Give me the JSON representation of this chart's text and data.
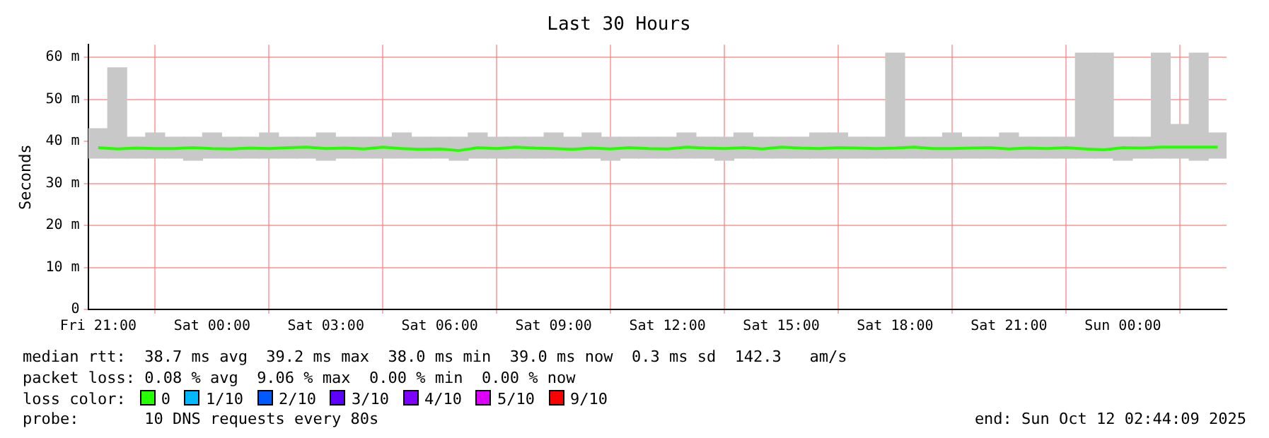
{
  "chart_data": {
    "type": "bar",
    "title": "Last 30 Hours",
    "ylabel": "Seconds",
    "xlim": [
      "2025-10-10T20:44",
      "2025-10-12T02:44"
    ],
    "xticks": [
      {
        "value": "2025-10-10T21:00",
        "label": "Fri 21:00"
      },
      {
        "value": "2025-10-11T00:00",
        "label": "Sat 00:00"
      },
      {
        "value": "2025-10-11T03:00",
        "label": "Sat 03:00"
      },
      {
        "value": "2025-10-11T06:00",
        "label": "Sat 06:00"
      },
      {
        "value": "2025-10-11T09:00",
        "label": "Sat 09:00"
      },
      {
        "value": "2025-10-11T12:00",
        "label": "Sat 12:00"
      },
      {
        "value": "2025-10-11T15:00",
        "label": "Sat 15:00"
      },
      {
        "value": "2025-10-11T18:00",
        "label": "Sat 18:00"
      },
      {
        "value": "2025-10-11T21:00",
        "label": "Sat 21:00"
      },
      {
        "value": "2025-10-12T00:00",
        "label": "Sun 00:00"
      }
    ],
    "ylim": [
      0,
      63
    ],
    "yticks": [
      {
        "value": 0,
        "label": "0"
      },
      {
        "value": 10,
        "label": "10 m"
      },
      {
        "value": 20,
        "label": "20 m"
      },
      {
        "value": 30,
        "label": "30 m"
      },
      {
        "value": 40,
        "label": "40 m"
      },
      {
        "value": 50,
        "label": "50 m"
      },
      {
        "value": 60,
        "label": "60 m"
      }
    ],
    "x": [
      "2025-10-10T21:00",
      "2025-10-10T21:30",
      "2025-10-10T22:00",
      "2025-10-10T22:30",
      "2025-10-10T23:00",
      "2025-10-10T23:30",
      "2025-10-11T00:00",
      "2025-10-11T00:30",
      "2025-10-11T01:00",
      "2025-10-11T01:30",
      "2025-10-11T02:00",
      "2025-10-11T02:30",
      "2025-10-11T03:00",
      "2025-10-11T03:30",
      "2025-10-11T04:00",
      "2025-10-11T04:30",
      "2025-10-11T05:00",
      "2025-10-11T05:30",
      "2025-10-11T06:00",
      "2025-10-11T06:30",
      "2025-10-11T07:00",
      "2025-10-11T07:30",
      "2025-10-11T08:00",
      "2025-10-11T08:30",
      "2025-10-11T09:00",
      "2025-10-11T09:30",
      "2025-10-11T10:00",
      "2025-10-11T10:30",
      "2025-10-11T11:00",
      "2025-10-11T11:30",
      "2025-10-11T12:00",
      "2025-10-11T12:30",
      "2025-10-11T13:00",
      "2025-10-11T13:30",
      "2025-10-11T14:00",
      "2025-10-11T14:30",
      "2025-10-11T15:00",
      "2025-10-11T15:30",
      "2025-10-11T16:00",
      "2025-10-11T16:30",
      "2025-10-11T17:00",
      "2025-10-11T17:30",
      "2025-10-11T18:00",
      "2025-10-11T18:30",
      "2025-10-11T19:00",
      "2025-10-11T19:30",
      "2025-10-11T20:00",
      "2025-10-11T20:30",
      "2025-10-11T21:00",
      "2025-10-11T21:30",
      "2025-10-11T22:00",
      "2025-10-11T22:30",
      "2025-10-11T23:00",
      "2025-10-11T23:30",
      "2025-10-12T00:00",
      "2025-10-12T00:30",
      "2025-10-12T01:00",
      "2025-10-12T01:30",
      "2025-10-12T02:00",
      "2025-10-12T02:30"
    ],
    "series": [
      {
        "color": "#c8c8c8",
        "base": [
          36,
          36,
          36,
          36,
          36,
          35.5,
          36,
          36,
          36,
          36,
          36,
          36,
          35.5,
          36,
          36,
          36,
          36,
          36,
          36,
          35.5,
          36,
          36,
          36,
          36,
          36,
          36,
          36,
          35.5,
          36,
          36,
          36,
          36,
          36,
          35.5,
          36,
          36,
          36,
          36,
          36,
          36,
          36,
          36,
          36,
          36,
          36,
          36,
          36,
          36,
          36,
          36,
          36,
          36,
          36,
          36,
          35.5,
          36,
          36,
          36,
          35.5,
          36
        ],
        "values": [
          7,
          21.5,
          5,
          6,
          5,
          5.5,
          6,
          5,
          5,
          6,
          5,
          5,
          6.5,
          5,
          5,
          5,
          6,
          5,
          5,
          5.5,
          6,
          5,
          5,
          5,
          6,
          5,
          6,
          5.5,
          5,
          5,
          5,
          6,
          5,
          5.5,
          6,
          5,
          5,
          5,
          6,
          6,
          5,
          5,
          25,
          5,
          5,
          6,
          5,
          5,
          6,
          5,
          5,
          5,
          25,
          25,
          5.5,
          5,
          25,
          8,
          25.5,
          6
        ]
      },
      {
        "type": "line",
        "name": "0",
        "color": "#26ff00",
        "values": [
          38.5,
          38.2,
          38.4,
          38.3,
          38.3,
          38.5,
          38.3,
          38.2,
          38.4,
          38.3,
          38.5,
          38.6,
          38.3,
          38.4,
          38.2,
          38.6,
          38.3,
          38.1,
          38.2,
          37.8,
          38.5,
          38.3,
          38.6,
          38.4,
          38.3,
          38.1,
          38.4,
          38.2,
          38.5,
          38.3,
          38.2,
          38.6,
          38.4,
          38.3,
          38.5,
          38.2,
          38.6,
          38.4,
          38.3,
          38.5,
          38.4,
          38.3,
          38.4,
          38.6,
          38.3,
          38.3,
          38.4,
          38.5,
          38.2,
          38.4,
          38.3,
          38.5,
          38.2,
          38.0,
          38.5,
          38.4,
          38.6,
          38.6,
          38.6,
          38.6
        ]
      },
      {
        "type": "line",
        "name": "1/10",
        "color": "#00b8ff",
        "values": [
          null,
          null,
          null,
          null,
          null,
          null,
          null,
          null,
          null,
          null,
          null,
          null,
          null,
          null,
          null,
          null,
          null,
          null,
          null,
          null,
          null,
          null,
          null,
          null,
          null,
          null,
          null,
          null,
          null,
          null,
          null,
          null,
          null,
          null,
          null,
          null,
          null,
          null,
          null,
          null,
          null,
          null,
          null,
          null,
          null,
          null,
          null,
          null,
          null,
          null,
          null,
          null,
          null,
          null,
          null,
          null,
          null,
          null,
          null,
          null
        ]
      },
      {
        "type": "line",
        "name": "2/10",
        "color": "#0059ff",
        "values": [
          null,
          null,
          null,
          null,
          null,
          null,
          null,
          null,
          null,
          null,
          null,
          null,
          null,
          null,
          null,
          null,
          null,
          null,
          null,
          null,
          null,
          null,
          null,
          null,
          null,
          null,
          null,
          null,
          null,
          null,
          null,
          null,
          null,
          null,
          null,
          null,
          null,
          null,
          null,
          null,
          null,
          null,
          null,
          null,
          null,
          null,
          null,
          null,
          null,
          null,
          null,
          null,
          null,
          null,
          null,
          null,
          null,
          null,
          null,
          null
        ]
      },
      {
        "type": "line",
        "name": "3/10",
        "color": "#5e00ff",
        "values": [
          null,
          null,
          null,
          null,
          null,
          null,
          null,
          null,
          null,
          null,
          null,
          null,
          null,
          null,
          null,
          null,
          null,
          null,
          null,
          null,
          null,
          null,
          null,
          null,
          null,
          null,
          null,
          null,
          null,
          null,
          null,
          null,
          null,
          null,
          null,
          null,
          null,
          null,
          null,
          null,
          null,
          null,
          null,
          null,
          null,
          null,
          null,
          null,
          null,
          null,
          null,
          null,
          null,
          null,
          null,
          null,
          null,
          null,
          null,
          null
        ]
      },
      {
        "type": "line",
        "name": "4/10",
        "color": "#7e00ff",
        "values": [
          null,
          null,
          null,
          null,
          null,
          null,
          null,
          null,
          null,
          null,
          null,
          null,
          null,
          null,
          null,
          null,
          null,
          null,
          null,
          null,
          null,
          null,
          null,
          null,
          null,
          null,
          null,
          null,
          null,
          null,
          null,
          null,
          null,
          null,
          null,
          null,
          null,
          null,
          null,
          null,
          null,
          null,
          null,
          null,
          null,
          null,
          null,
          null,
          null,
          null,
          null,
          null,
          null,
          null,
          null,
          null,
          null,
          null,
          null,
          null
        ]
      },
      {
        "type": "line",
        "name": "5/10",
        "color": "#dd00ff",
        "values": [
          null,
          null,
          null,
          null,
          null,
          null,
          null,
          null,
          null,
          null,
          null,
          null,
          null,
          null,
          null,
          null,
          null,
          null,
          null,
          null,
          null,
          null,
          null,
          null,
          null,
          null,
          null,
          null,
          null,
          null,
          null,
          null,
          null,
          null,
          null,
          null,
          null,
          null,
          null,
          null,
          null,
          null,
          null,
          null,
          null,
          null,
          null,
          null,
          null,
          null,
          null,
          null,
          null,
          null,
          null,
          null,
          null,
          null,
          null,
          null
        ]
      },
      {
        "type": "line",
        "name": "9/10",
        "color": "#ff0000",
        "values": [
          null,
          null,
          null,
          null,
          null,
          null,
          null,
          null,
          null,
          null,
          null,
          null,
          null,
          null,
          null,
          null,
          null,
          null,
          null,
          null,
          null,
          null,
          null,
          null,
          null,
          null,
          null,
          null,
          null,
          null,
          null,
          null,
          null,
          null,
          null,
          null,
          null,
          null,
          null,
          null,
          null,
          null,
          null,
          null,
          null,
          null,
          null,
          null,
          null,
          null,
          null,
          null,
          null,
          null,
          null,
          null,
          null,
          null,
          null,
          null
        ]
      }
    ],
    "grid": true,
    "legend": "bottom",
    "annotations": [
      "median rtt:  38.7 ms avg  39.2 ms max  38.0 ms min  39.0 ms now  0.3 ms sd  142.3   am/s",
      "packet loss: 0.08 % avg  9.06 % max  0.00 % min  0.00 % now",
      "loss color:",
      "probe:       10 DNS requests every 80s",
      "end: Sun Oct 12 02:44:09 2025"
    ]
  }
}
